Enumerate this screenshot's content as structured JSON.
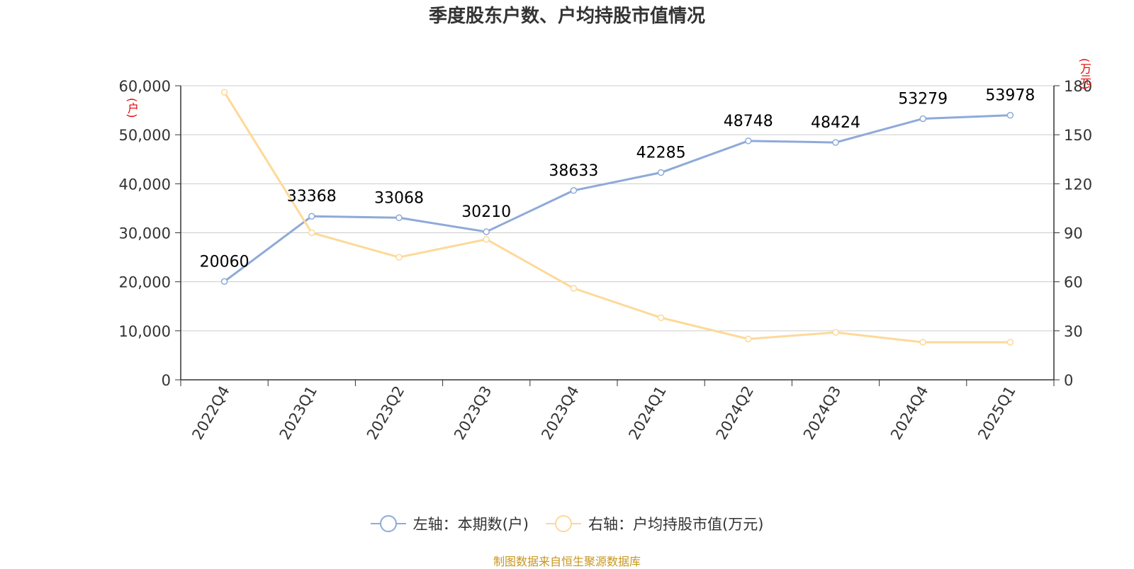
{
  "title": "季度股东户数、户均持股市值情况",
  "footer": "制图数据来自恒生聚源数据库",
  "left_axis_unit": "(户)",
  "right_axis_unit": "(万元)",
  "legend": [
    {
      "label": "左轴：本期数(户)",
      "color": "#8eaad8"
    },
    {
      "label": "右轴：户均持股市值(万元)",
      "color": "#fdd999"
    }
  ],
  "chart_data": {
    "type": "line",
    "categories": [
      "2022Q4",
      "2023Q1",
      "2023Q2",
      "2023Q3",
      "2023Q4",
      "2024Q1",
      "2024Q2",
      "2024Q3",
      "2024Q4",
      "2025Q1"
    ],
    "series": [
      {
        "name": "左轴：本期数(户)",
        "axis": "left",
        "color": "#8eaad8",
        "values": [
          20060,
          33368,
          33068,
          30210,
          38633,
          42285,
          48748,
          48424,
          53279,
          53978
        ],
        "data_labels": [
          "20060",
          "33368",
          "33068",
          "30210",
          "38633",
          "42285",
          "48748",
          "48424",
          "53279",
          "53978"
        ]
      },
      {
        "name": "右轴：户均持股市值(万元)",
        "axis": "right",
        "color": "#fdd999",
        "values": [
          176,
          90,
          75,
          86,
          56,
          38,
          25,
          29,
          23,
          23
        ]
      }
    ],
    "left_axis": {
      "min": 0,
      "max": 60000,
      "ticks": [
        0,
        10000,
        20000,
        30000,
        40000,
        50000,
        60000
      ],
      "tick_labels": [
        "0",
        "10,000",
        "20,000",
        "30,000",
        "40,000",
        "50,000",
        "60,000"
      ]
    },
    "right_axis": {
      "min": 0,
      "max": 180,
      "ticks": [
        0,
        30,
        60,
        90,
        120,
        150,
        180
      ],
      "tick_labels": [
        "0",
        "30",
        "60",
        "90",
        "120",
        "150",
        "180"
      ]
    },
    "grid": true,
    "legend_position": "bottom"
  }
}
